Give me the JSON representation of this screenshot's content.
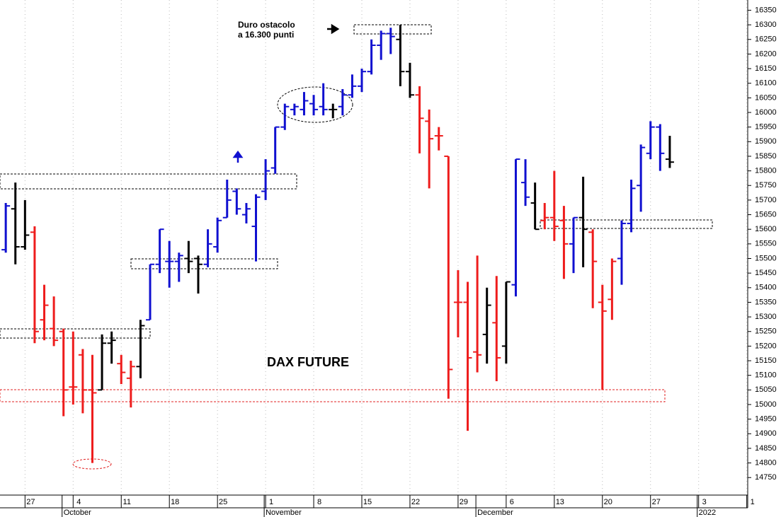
{
  "chart_data": {
    "type": "ohlc",
    "title": "DAX FUTURE",
    "annotation": [
      "Duro ostacolo",
      "a 16.300 punti"
    ],
    "open": [
      15530,
      15670,
      15540,
      15590,
      15290,
      15260,
      15250,
      15060,
      15170,
      15050,
      15050,
      15210,
      15140,
      15090,
      15130,
      15290,
      15480,
      15490,
      15490,
      15500,
      15500,
      15480,
      15540,
      15640,
      15730,
      15650,
      15610,
      15730,
      15810,
      15950,
      16010,
      16010,
      16030,
      16020,
      16010,
      16020,
      16060,
      16090,
      16140,
      16230,
      16270,
      16250,
      16140,
      16060,
      15970,
      15920,
      15850,
      15350,
      15350,
      15180,
      15240,
      15280,
      15200,
      15410,
      15760,
      15690,
      15630,
      15640,
      15630,
      15550,
      15640,
      15590,
      15350,
      15360,
      15500,
      15620,
      15750,
      15860,
      15950,
      15840
    ],
    "high": [
      15690,
      15760,
      15700,
      15610,
      15410,
      15370,
      15260,
      15250,
      15190,
      15170,
      15240,
      15250,
      15170,
      15150,
      15290,
      15480,
      15600,
      15560,
      15520,
      15560,
      15510,
      15600,
      15640,
      15770,
      15740,
      15690,
      15720,
      15840,
      15950,
      16030,
      16030,
      16070,
      16060,
      16100,
      16030,
      16080,
      16130,
      16150,
      16250,
      16280,
      16290,
      16300,
      16170,
      16090,
      16010,
      15950,
      15850,
      15460,
      15420,
      15510,
      15400,
      15440,
      15420,
      15840,
      15840,
      15760,
      15690,
      15800,
      15680,
      15640,
      15780,
      15600,
      15410,
      15500,
      15630,
      15770,
      15890,
      15970,
      15960,
      15920
    ],
    "low": [
      15520,
      15480,
      15530,
      15210,
      15220,
      15200,
      14960,
      15000,
      14970,
      14800,
      15050,
      15140,
      15070,
      14990,
      15090,
      15290,
      15450,
      15400,
      15420,
      15450,
      15380,
      15470,
      15520,
      15640,
      15650,
      15620,
      15490,
      15700,
      15790,
      15940,
      15990,
      15990,
      15990,
      15990,
      15980,
      15990,
      16050,
      16070,
      16130,
      16180,
      16200,
      16090,
      16050,
      15860,
      15740,
      15870,
      15020,
      15230,
      14910,
      15110,
      15140,
      15080,
      15140,
      15370,
      15680,
      15600,
      15600,
      15560,
      15430,
      15450,
      15470,
      15330,
      15050,
      15290,
      15410,
      15590,
      15660,
      15840,
      15800,
      15810
    ],
    "close": [
      15680,
      15540,
      15580,
      15250,
      15340,
      15220,
      15050,
      15060,
      15050,
      15040,
      15210,
      15220,
      15110,
      15130,
      15270,
      15480,
      15600,
      15490,
      15510,
      15490,
      15480,
      15550,
      15630,
      15700,
      15670,
      15670,
      15710,
      15800,
      15950,
      16020,
      16020,
      16040,
      16010,
      16010,
      16010,
      16060,
      16090,
      16140,
      16230,
      16270,
      16260,
      16140,
      16060,
      15980,
      15910,
      15920,
      15120,
      15350,
      15160,
      15170,
      15340,
      15160,
      15420,
      15840,
      15710,
      15600,
      15640,
      15610,
      15550,
      15640,
      15600,
      15490,
      15320,
      15490,
      15620,
      15740,
      15880,
      15950,
      15860,
      15830
    ],
    "colors": [
      "#1010d0",
      "#000000",
      "#000000",
      "#ee1c1c",
      "#ee1c1c",
      "#ee1c1c",
      "#ee1c1c",
      "#ee1c1c",
      "#ee1c1c",
      "#ee1c1c",
      "#000000",
      "#000000",
      "#ee1c1c",
      "#ee1c1c",
      "#000000",
      "#1010d0",
      "#1010d0",
      "#1010d0",
      "#1010d0",
      "#000000",
      "#000000",
      "#1010d0",
      "#1010d0",
      "#1010d0",
      "#1010d0",
      "#1010d0",
      "#1010d0",
      "#1010d0",
      "#1010d0",
      "#1010d0",
      "#1010d0",
      "#1010d0",
      "#1010d0",
      "#1010d0",
      "#000000",
      "#1010d0",
      "#1010d0",
      "#1010d0",
      "#1010d0",
      "#1010d0",
      "#1010d0",
      "#000000",
      "#000000",
      "#ee1c1c",
      "#ee1c1c",
      "#ee1c1c",
      "#ee1c1c",
      "#ee1c1c",
      "#ee1c1c",
      "#ee1c1c",
      "#000000",
      "#ee1c1c",
      "#000000",
      "#1010d0",
      "#1010d0",
      "#000000",
      "#ee1c1c",
      "#ee1c1c",
      "#ee1c1c",
      "#1010d0",
      "#000000",
      "#ee1c1c",
      "#ee1c1c",
      "#ee1c1c",
      "#1010d0",
      "#1010d0",
      "#1010d0",
      "#1010d0",
      "#1010d0",
      "#000000"
    ],
    "xlim": [
      -0.6,
      77.1
    ],
    "xticks": [
      {
        "value": 2,
        "label": "27"
      },
      {
        "value": 7,
        "label": "4"
      },
      {
        "value": 12,
        "label": "11"
      },
      {
        "value": 17,
        "label": "18"
      },
      {
        "value": 22,
        "label": "25"
      },
      {
        "value": 27,
        "label": "1"
      },
      {
        "value": 32,
        "label": "8"
      },
      {
        "value": 37,
        "label": "15"
      },
      {
        "value": 42,
        "label": "22"
      },
      {
        "value": 47,
        "label": "29"
      },
      {
        "value": 52,
        "label": "6"
      },
      {
        "value": 57,
        "label": "13"
      },
      {
        "value": 62,
        "label": "20"
      },
      {
        "value": 67,
        "label": "27"
      },
      {
        "value": 72,
        "label": "3"
      },
      {
        "value": 77,
        "label": "1"
      }
    ],
    "month_ticks": [
      {
        "value": 6,
        "label": "October"
      },
      {
        "value": 27,
        "label": "November"
      },
      {
        "value": 49,
        "label": "December"
      },
      {
        "value": 72,
        "label": "2022"
      }
    ],
    "ylim": [
      14690,
      16385
    ],
    "yticks": [
      14750,
      14800,
      14850,
      14900,
      14950,
      15000,
      15050,
      15100,
      15150,
      15200,
      15250,
      15300,
      15350,
      15400,
      15450,
      15500,
      15550,
      15600,
      15650,
      15700,
      15750,
      15800,
      15850,
      15900,
      15950,
      16000,
      16050,
      16100,
      16150,
      16200,
      16250,
      16300,
      16350
    ],
    "grid": true
  }
}
